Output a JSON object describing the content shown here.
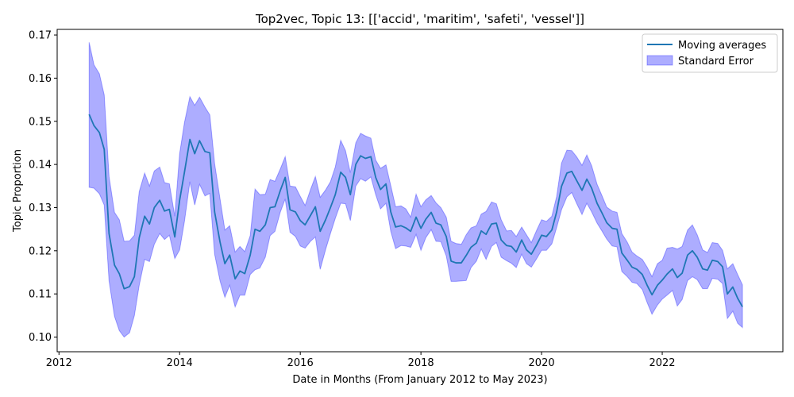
{
  "chart_data": {
    "type": "line",
    "title": "Top2vec, Topic 13: [['accid', 'maritim', 'safeti', 'vessel']]",
    "xlabel": "Date in Months (From January 2012 to May 2023)",
    "ylabel": "Topic Proportion",
    "xlim": [
      2011.97,
      2024.0
    ],
    "ylim": [
      0.0966,
      0.1713
    ],
    "xticks": [
      2012,
      2014,
      2016,
      2018,
      2020,
      2022
    ],
    "xtick_labels": [
      "2012",
      "2014",
      "2016",
      "2018",
      "2020",
      "2022"
    ],
    "yticks": [
      0.1,
      0.11,
      0.12,
      0.13,
      0.14,
      0.15,
      0.16,
      0.17
    ],
    "ytick_labels": [
      "0.10",
      "0.11",
      "0.12",
      "0.13",
      "0.14",
      "0.15",
      "0.16",
      "0.17"
    ],
    "grid": false,
    "legend_position": "top-right",
    "series": [
      {
        "name": "Moving averages",
        "color": "#1f77b4",
        "x": [
          2012.5,
          2012.58,
          2012.67,
          2012.75,
          2012.83,
          2012.92,
          2013.0,
          2013.08,
          2013.17,
          2013.25,
          2013.33,
          2013.42,
          2013.5,
          2013.58,
          2013.67,
          2013.75,
          2013.83,
          2013.92,
          2014.0,
          2014.08,
          2014.17,
          2014.25,
          2014.33,
          2014.42,
          2014.5,
          2014.58,
          2014.67,
          2014.75,
          2014.83,
          2014.92,
          2015.0,
          2015.08,
          2015.17,
          2015.25,
          2015.33,
          2015.42,
          2015.5,
          2015.58,
          2015.67,
          2015.75,
          2015.83,
          2015.92,
          2016.0,
          2016.08,
          2016.17,
          2016.25,
          2016.33,
          2016.42,
          2016.5,
          2016.58,
          2016.67,
          2016.75,
          2016.83,
          2016.92,
          2017.0,
          2017.08,
          2017.17,
          2017.25,
          2017.33,
          2017.42,
          2017.5,
          2017.58,
          2017.67,
          2017.75,
          2017.83,
          2017.92,
          2018.0,
          2018.08,
          2018.17,
          2018.25,
          2018.33,
          2018.42,
          2018.5,
          2018.58,
          2018.67,
          2018.75,
          2018.83,
          2018.92,
          2019.0,
          2019.08,
          2019.17,
          2019.25,
          2019.33,
          2019.42,
          2019.5,
          2019.58,
          2019.67,
          2019.75,
          2019.83,
          2019.92,
          2020.0,
          2020.08,
          2020.17,
          2020.25,
          2020.33,
          2020.42,
          2020.5,
          2020.58,
          2020.67,
          2020.75,
          2020.83,
          2020.92,
          2021.0,
          2021.08,
          2021.17,
          2021.25,
          2021.33,
          2021.42,
          2021.5,
          2021.58,
          2021.67,
          2021.75,
          2021.83,
          2021.92,
          2022.0,
          2022.08,
          2022.17,
          2022.25,
          2022.33,
          2022.42,
          2022.5,
          2022.58,
          2022.67,
          2022.75,
          2022.83,
          2022.92,
          2023.0,
          2023.08,
          2023.17,
          2023.25,
          2023.33
        ],
        "values": [
          0.1516,
          0.149,
          0.1474,
          0.1435,
          0.124,
          0.1167,
          0.1147,
          0.1112,
          0.1117,
          0.114,
          0.123,
          0.128,
          0.1262,
          0.13,
          0.1317,
          0.1292,
          0.1296,
          0.1232,
          0.1317,
          0.1382,
          0.1458,
          0.1425,
          0.1455,
          0.143,
          0.1427,
          0.129,
          0.122,
          0.117,
          0.119,
          0.1135,
          0.1153,
          0.1147,
          0.119,
          0.125,
          0.1245,
          0.126,
          0.13,
          0.1302,
          0.134,
          0.137,
          0.1295,
          0.129,
          0.127,
          0.126,
          0.1282,
          0.1302,
          0.1245,
          0.1272,
          0.13,
          0.133,
          0.1382,
          0.137,
          0.133,
          0.14,
          0.142,
          0.1414,
          0.1418,
          0.137,
          0.1342,
          0.1355,
          0.129,
          0.1255,
          0.1258,
          0.1253,
          0.1245,
          0.1278,
          0.1252,
          0.1273,
          0.1289,
          0.1264,
          0.126,
          0.1233,
          0.1176,
          0.1172,
          0.1172,
          0.1189,
          0.1208,
          0.1218,
          0.1246,
          0.1238,
          0.1262,
          0.1264,
          0.1225,
          0.1212,
          0.121,
          0.1197,
          0.1225,
          0.1202,
          0.1192,
          0.1214,
          0.1236,
          0.1233,
          0.1248,
          0.129,
          0.1349,
          0.138,
          0.1384,
          0.1363,
          0.134,
          0.1366,
          0.1345,
          0.131,
          0.1288,
          0.1265,
          0.1252,
          0.125,
          0.1195,
          0.1178,
          0.1162,
          0.1157,
          0.1145,
          0.112,
          0.1098,
          0.112,
          0.1132,
          0.1146,
          0.1158,
          0.1138,
          0.1148,
          0.119,
          0.12,
          0.1185,
          0.1158,
          0.1155,
          0.1178,
          0.1175,
          0.1163,
          0.11,
          0.1116,
          0.109,
          0.107
        ]
      }
    ],
    "band": {
      "name": "Standard Error",
      "color": "#0000ff",
      "upper": [
        0.1683,
        0.1631,
        0.161,
        0.1561,
        0.1372,
        0.1289,
        0.1272,
        0.1222,
        0.1223,
        0.1236,
        0.1337,
        0.138,
        0.135,
        0.1385,
        0.1394,
        0.1358,
        0.1355,
        0.128,
        0.1425,
        0.1497,
        0.1557,
        0.1537,
        0.1556,
        0.1533,
        0.1515,
        0.1402,
        0.132,
        0.1248,
        0.1258,
        0.1197,
        0.121,
        0.1198,
        0.1235,
        0.1343,
        0.133,
        0.1331,
        0.1365,
        0.1361,
        0.139,
        0.1418,
        0.135,
        0.1348,
        0.1326,
        0.1305,
        0.1342,
        0.1372,
        0.1324,
        0.1341,
        0.136,
        0.1394,
        0.1456,
        0.1432,
        0.1381,
        0.145,
        0.1472,
        0.1466,
        0.1461,
        0.141,
        0.1391,
        0.1399,
        0.1351,
        0.1302,
        0.1304,
        0.1297,
        0.1278,
        0.1331,
        0.1302,
        0.1318,
        0.1328,
        0.1311,
        0.13,
        0.1278,
        0.1222,
        0.1217,
        0.1215,
        0.1237,
        0.1253,
        0.1258,
        0.1285,
        0.1291,
        0.1313,
        0.1309,
        0.1272,
        0.1246,
        0.1247,
        0.1233,
        0.1255,
        0.1237,
        0.1219,
        0.1248,
        0.1272,
        0.1268,
        0.128,
        0.1326,
        0.1403,
        0.1433,
        0.1432,
        0.1418,
        0.1398,
        0.1422,
        0.1397,
        0.1354,
        0.1328,
        0.1301,
        0.1292,
        0.1289,
        0.124,
        0.122,
        0.1197,
        0.1188,
        0.118,
        0.1162,
        0.114,
        0.117,
        0.1178,
        0.1206,
        0.1208,
        0.1204,
        0.121,
        0.1248,
        0.126,
        0.1237,
        0.1202,
        0.1196,
        0.1219,
        0.1217,
        0.1201,
        0.1158,
        0.117,
        0.1145,
        0.1121
      ],
      "lower": [
        0.1347,
        0.1345,
        0.1332,
        0.1306,
        0.113,
        0.1048,
        0.1015,
        0.1,
        0.101,
        0.105,
        0.112,
        0.118,
        0.1175,
        0.1215,
        0.124,
        0.1226,
        0.1236,
        0.1182,
        0.1202,
        0.1268,
        0.136,
        0.1306,
        0.1354,
        0.1327,
        0.1333,
        0.1192,
        0.113,
        0.1092,
        0.112,
        0.107,
        0.1097,
        0.1097,
        0.1145,
        0.1156,
        0.116,
        0.1185,
        0.1235,
        0.1245,
        0.129,
        0.132,
        0.1243,
        0.1233,
        0.1211,
        0.1206,
        0.1222,
        0.1232,
        0.1157,
        0.1203,
        0.124,
        0.1275,
        0.131,
        0.1309,
        0.127,
        0.135,
        0.1367,
        0.1361,
        0.1371,
        0.133,
        0.1297,
        0.131,
        0.1245,
        0.1205,
        0.1212,
        0.1211,
        0.1208,
        0.1238,
        0.1201,
        0.123,
        0.1249,
        0.1222,
        0.1221,
        0.1188,
        0.1129,
        0.1129,
        0.113,
        0.1131,
        0.1161,
        0.1176,
        0.1204,
        0.118,
        0.121,
        0.1219,
        0.1185,
        0.1177,
        0.1171,
        0.1161,
        0.1192,
        0.117,
        0.1162,
        0.1182,
        0.1201,
        0.1201,
        0.1216,
        0.1254,
        0.1295,
        0.1325,
        0.1335,
        0.131,
        0.1284,
        0.131,
        0.129,
        0.1264,
        0.1246,
        0.1227,
        0.1211,
        0.1209,
        0.1152,
        0.114,
        0.1127,
        0.1124,
        0.111,
        0.108,
        0.1053,
        0.1074,
        0.1088,
        0.1097,
        0.1108,
        0.1072,
        0.1087,
        0.1131,
        0.114,
        0.1133,
        0.1112,
        0.1112,
        0.1136,
        0.1134,
        0.1124,
        0.1043,
        0.106,
        0.1032,
        0.1022
      ]
    }
  }
}
